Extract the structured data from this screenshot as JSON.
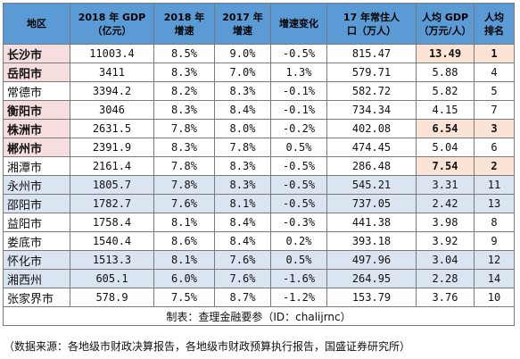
{
  "headers": {
    "region": "地区",
    "gdp_line1": "2018 年 GDP",
    "gdp_line2": "（亿元）",
    "g2018_line1": "2018 年",
    "g2018_line2": "增速",
    "g2017_line1": "2017 年",
    "g2017_line2": "增速",
    "change": "增速变化",
    "pop_line1": "17 年常住人",
    "pop_line2": "口（万人）",
    "pcgdp_line1": "人均 GDP",
    "pcgdp_line2": "（万元/人）",
    "rank_line1": "人均",
    "rank_line2": "排名"
  },
  "rows": [
    {
      "city": "长沙市",
      "gdp": "11003.4",
      "g2018": "8.5%",
      "g2017": "9.0%",
      "change": "-0.5%",
      "pop": "815.47",
      "pcgdp": "13.49",
      "rank": "1"
    },
    {
      "city": "岳阳市",
      "gdp": "3411",
      "g2018": "8.3%",
      "g2017": "7.0%",
      "change": "1.3%",
      "pop": "579.71",
      "pcgdp": "5.88",
      "rank": "4"
    },
    {
      "city": "常德市",
      "gdp": "3394.2",
      "g2018": "8.2%",
      "g2017": "8.3%",
      "change": "-0.1%",
      "pop": "582.72",
      "pcgdp": "5.82",
      "rank": "5"
    },
    {
      "city": "衡阳市",
      "gdp": "3046",
      "g2018": "8.3%",
      "g2017": "8.4%",
      "change": "-0.1%",
      "pop": "734.34",
      "pcgdp": "4.15",
      "rank": "7"
    },
    {
      "city": "株洲市",
      "gdp": "2631.5",
      "g2018": "7.8%",
      "g2017": "8.0%",
      "change": "-0.2%",
      "pop": "402.08",
      "pcgdp": "6.54",
      "rank": "3"
    },
    {
      "city": "郴州市",
      "gdp": "2391.9",
      "g2018": "8.3%",
      "g2017": "7.8%",
      "change": "0.5%",
      "pop": "474.45",
      "pcgdp": "5.04",
      "rank": "6"
    },
    {
      "city": "湘潭市",
      "gdp": "2161.4",
      "g2018": "7.8%",
      "g2017": "8.3%",
      "change": "-0.5%",
      "pop": "286.48",
      "pcgdp": "7.54",
      "rank": "2"
    },
    {
      "city": "永州市",
      "gdp": "1805.7",
      "g2018": "7.8%",
      "g2017": "8.3%",
      "change": "-0.5%",
      "pop": "545.21",
      "pcgdp": "3.31",
      "rank": "11"
    },
    {
      "city": "邵阳市",
      "gdp": "1782.7",
      "g2018": "7.6%",
      "g2017": "8.1%",
      "change": "-0.5%",
      "pop": "737.05",
      "pcgdp": "2.42",
      "rank": "13"
    },
    {
      "city": "益阳市",
      "gdp": "1758.4",
      "g2018": "8.1%",
      "g2017": "8.4%",
      "change": "-0.3%",
      "pop": "441.38",
      "pcgdp": "3.98",
      "rank": "8"
    },
    {
      "city": "娄底市",
      "gdp": "1540.4",
      "g2018": "8.6%",
      "g2017": "8.4%",
      "change": "0.2%",
      "pop": "393.18",
      "pcgdp": "3.92",
      "rank": "9"
    },
    {
      "city": "怀化市",
      "gdp": "1513.3",
      "g2018": "8.1%",
      "g2017": "7.6%",
      "change": "0.5%",
      "pop": "497.96",
      "pcgdp": "3.04",
      "rank": "12"
    },
    {
      "city": "湘西州",
      "gdp": "605.1",
      "g2018": "6.0%",
      "g2017": "7.6%",
      "change": "-1.6%",
      "pop": "264.95",
      "pcgdp": "2.28",
      "rank": "14"
    },
    {
      "city": "张家界市",
      "gdp": "578.9",
      "g2018": "7.5%",
      "g2017": "8.7%",
      "change": "-1.2%",
      "pop": "153.79",
      "pcgdp": "3.76",
      "rank": "10"
    }
  ],
  "caption": "制表：查理金融要参（ID：chalijrnc）",
  "source": "（数据来源：各地级市财政决算报告，各地级市财政预算执行报告，国盛证券研究所）"
}
